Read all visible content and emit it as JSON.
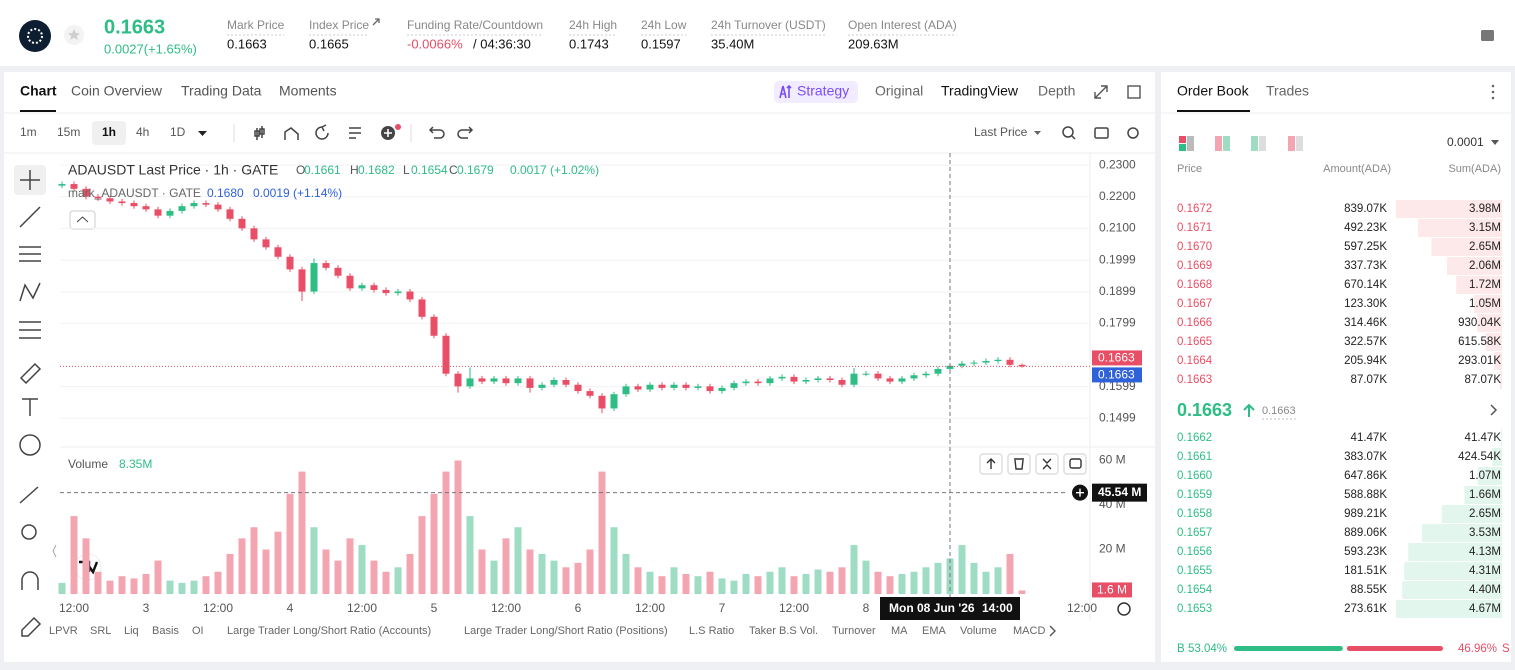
{
  "header": {
    "price": "0.1663",
    "change": "0.0027(+1.65%)",
    "stats": [
      {
        "label": "Mark Price",
        "value": "0.1663"
      },
      {
        "label": "Index Price",
        "value": "0.1665"
      },
      {
        "label": "Funding Rate/Countdown",
        "value": "-0.0066%",
        "extra": "/ 04:36:30"
      },
      {
        "label": "24h High",
        "value": "0.1743"
      },
      {
        "label": "24h Low",
        "value": "0.1597"
      },
      {
        "label": "24h Turnover (USDT)",
        "value": "35.40M"
      },
      {
        "label": "Open Interest (ADA)",
        "value": "209.63M"
      }
    ]
  },
  "chart_panel": {
    "tabs": [
      "Chart",
      "Coin Overview",
      "Trading Data",
      "Moments"
    ],
    "view_tabs": [
      "Strategy",
      "Original",
      "TradingView",
      "Depth"
    ],
    "intervals": [
      "1m",
      "15m",
      "1h",
      "4h",
      "1D"
    ],
    "price_source": "Last Price",
    "indicators": [
      "LPVR",
      "SRL",
      "Liq",
      "Basis",
      "OI",
      "Large Trader Long/Short Ratio (Accounts)",
      "Large Trader Long/Short Ratio (Positions)",
      "L.S Ratio",
      "Taker B.S Vol.",
      "Turnover",
      "MA",
      "EMA",
      "Volume",
      "MACD"
    ]
  },
  "chart_data": {
    "type": "candlestick",
    "title": "ADAUSDT Last Price · 1h · GATE",
    "legend_ohlc": [
      {
        "key": "O",
        "value": "0.1661"
      },
      {
        "key": "H",
        "value": "0.1682"
      },
      {
        "key": "L",
        "value": "0.1654"
      },
      {
        "key": "C",
        "value": "0.1679"
      }
    ],
    "legend_change": "0.0017 (+1.02%)",
    "mark_label": "mark_ADAUSDT · GATE",
    "mark_value": "0.1680",
    "mark_change": "0.0019 (+1.14%)",
    "up_color": "#2ebd85",
    "down_color": "#e84e65",
    "x_labels": [
      "12:00",
      "3",
      "12:00",
      "4",
      "12:00",
      "5",
      "12:00",
      "6",
      "12:00",
      "7",
      "12:00",
      "8",
      null,
      null,
      "12:00"
    ],
    "open": [
      0.2235,
      0.224,
      0.2225,
      0.22,
      0.2195,
      0.2185,
      0.218,
      0.217,
      0.216,
      0.214,
      0.2155,
      0.217,
      0.218,
      0.2175,
      0.216,
      0.213,
      0.21,
      0.2065,
      0.204,
      0.201,
      0.197,
      0.19,
      0.199,
      0.1975,
      0.195,
      0.191,
      0.192,
      0.1905,
      0.1895,
      0.19,
      0.1875,
      0.182,
      0.176,
      0.164,
      0.16,
      0.1625,
      0.1615,
      0.1625,
      0.161,
      0.1625,
      0.1595,
      0.1605,
      0.162,
      0.1605,
      0.1585,
      0.157,
      0.153,
      0.1575,
      0.16,
      0.159,
      0.1605,
      0.1595,
      0.1605,
      0.1595,
      0.16,
      0.1585,
      0.1595,
      0.161,
      0.1615,
      0.161,
      0.1625,
      0.163,
      0.1615,
      0.162,
      0.1625,
      0.162,
      0.1605,
      0.164,
      0.164,
      0.1625,
      0.1615,
      0.1625,
      0.1635,
      0.164,
      0.1655,
      0.1665,
      0.1672,
      0.1675,
      0.168,
      0.1684,
      0.1668
    ],
    "high": [
      0.2248,
      0.2248,
      0.2233,
      0.2208,
      0.2203,
      0.2193,
      0.2188,
      0.2178,
      0.2168,
      0.2163,
      0.2178,
      0.2188,
      0.2188,
      0.2183,
      0.2168,
      0.2138,
      0.2108,
      0.2073,
      0.2048,
      0.2018,
      0.1978,
      0.2005,
      0.1998,
      0.1983,
      0.1958,
      0.1928,
      0.1928,
      0.1913,
      0.1908,
      0.1908,
      0.1883,
      0.1828,
      0.1768,
      0.1648,
      0.166,
      0.1633,
      0.1633,
      0.1633,
      0.1633,
      0.1633,
      0.1613,
      0.1628,
      0.1628,
      0.1613,
      0.1593,
      0.1578,
      0.1583,
      0.1608,
      0.1608,
      0.1613,
      0.1613,
      0.1613,
      0.1613,
      0.1608,
      0.1608,
      0.1603,
      0.1618,
      0.1623,
      0.1623,
      0.1633,
      0.1638,
      0.1638,
      0.1628,
      0.1633,
      0.1633,
      0.1628,
      0.1658,
      0.1648,
      0.1648,
      0.1633,
      0.1633,
      0.1643,
      0.1648,
      0.1663,
      0.1673,
      0.168,
      0.1683,
      0.1688,
      0.1692,
      0.1692,
      0.1672
    ],
    "low": [
      0.2227,
      0.2217,
      0.2192,
      0.2187,
      0.2177,
      0.2172,
      0.2162,
      0.2152,
      0.2132,
      0.2132,
      0.2147,
      0.2162,
      0.2167,
      0.2152,
      0.2122,
      0.2092,
      0.2057,
      0.2032,
      0.2002,
      0.1962,
      0.187,
      0.1892,
      0.1967,
      0.1942,
      0.1902,
      0.1902,
      0.1897,
      0.1887,
      0.1887,
      0.1867,
      0.1812,
      0.1752,
      0.1632,
      0.158,
      0.1592,
      0.1607,
      0.1607,
      0.1602,
      0.1602,
      0.158,
      0.1587,
      0.1597,
      0.1597,
      0.1577,
      0.1562,
      0.1515,
      0.1522,
      0.1567,
      0.1582,
      0.1582,
      0.1587,
      0.1587,
      0.1587,
      0.1587,
      0.1577,
      0.1577,
      0.1587,
      0.1602,
      0.1602,
      0.1602,
      0.1617,
      0.1607,
      0.1607,
      0.1612,
      0.1612,
      0.1597,
      0.1597,
      0.1632,
      0.1617,
      0.1607,
      0.1607,
      0.1617,
      0.1627,
      0.1632,
      0.1647,
      0.1657,
      0.1664,
      0.1667,
      0.1672,
      0.166,
      0.1659
    ],
    "close": [
      0.224,
      0.2225,
      0.22,
      0.2195,
      0.2185,
      0.218,
      0.217,
      0.216,
      0.214,
      0.2155,
      0.217,
      0.218,
      0.2175,
      0.216,
      0.213,
      0.21,
      0.2065,
      0.204,
      0.201,
      0.197,
      0.19,
      0.199,
      0.1975,
      0.195,
      0.191,
      0.192,
      0.1905,
      0.1895,
      0.19,
      0.1875,
      0.182,
      0.176,
      0.164,
      0.16,
      0.1625,
      0.1615,
      0.1625,
      0.161,
      0.1625,
      0.1595,
      0.1605,
      0.162,
      0.1605,
      0.1585,
      0.157,
      0.153,
      0.1575,
      0.16,
      0.159,
      0.1605,
      0.1595,
      0.1605,
      0.1595,
      0.16,
      0.1585,
      0.1595,
      0.161,
      0.1615,
      0.161,
      0.1625,
      0.163,
      0.1615,
      0.162,
      0.1625,
      0.162,
      0.1605,
      0.164,
      0.164,
      0.1625,
      0.1615,
      0.1625,
      0.1635,
      0.164,
      0.1655,
      0.1665,
      0.1672,
      0.1675,
      0.168,
      0.1684,
      0.1668,
      0.1663
    ],
    "ylim": [
      0.1408,
      0.2332
    ],
    "yticks": [
      {
        "value": 0.23,
        "label": "0.2300"
      },
      {
        "value": 0.22,
        "label": "0.2200"
      },
      {
        "value": 0.21,
        "label": "0.2100"
      },
      0.1999,
      0.1899,
      0.1799,
      0.1599,
      0.1499
    ],
    "grid": true,
    "price_markers": [
      {
        "value": 0.1663,
        "label": "0.1663",
        "color": "#e84e65"
      },
      {
        "value": 0.1663,
        "label": "0.1663",
        "color": "#2f62d8"
      }
    ],
    "crosshair_time": [
      "Mon 08 Jun '26",
      "14:00"
    ],
    "volume": {
      "title": "Volume",
      "current": "8.35M",
      "up_color": "#9fdcc4",
      "down_color": "#f4a5b2",
      "values": [
        5,
        35,
        25,
        10,
        6,
        8,
        7,
        9,
        15,
        6,
        5,
        6,
        8,
        10,
        18,
        25,
        30,
        20,
        28,
        45,
        55,
        30,
        20,
        15,
        25,
        22,
        15,
        10,
        12,
        18,
        35,
        45,
        55,
        60,
        35,
        20,
        15,
        25,
        30,
        20,
        18,
        15,
        12,
        14,
        20,
        55,
        30,
        18,
        12,
        10,
        8,
        12,
        9,
        8,
        10,
        7,
        6,
        9,
        8,
        10,
        12,
        8,
        9,
        11,
        10,
        12,
        22,
        15,
        10,
        8,
        9,
        10,
        12,
        14,
        16,
        22,
        14,
        10,
        12,
        18,
        1.6
      ],
      "ylim": [
        0,
        64.7
      ],
      "yticks": [
        {
          "value": 60,
          "label": "60 M"
        },
        {
          "value": 40,
          "label": "40 M"
        },
        {
          "value": 20,
          "label": "20 M"
        }
      ],
      "crosshair_marker": {
        "value": 45.54,
        "label": "45.54 M"
      },
      "last_marker": {
        "value": 1.6,
        "label": "1.6 M"
      }
    }
  },
  "order_book": {
    "tabs": [
      "Order Book",
      "Trades"
    ],
    "precision": "0.0001",
    "columns": [
      "Price",
      "Amount(ADA)",
      "Sum(ADA)"
    ],
    "asks": [
      {
        "price": "0.1672",
        "amount": "839.07K",
        "sum": {
          "value": 3980000,
          "label": "3.98M"
        }
      },
      {
        "price": "0.1671",
        "amount": "492.23K",
        "sum": {
          "value": 3150000,
          "label": "3.15M"
        }
      },
      {
        "price": "0.1670",
        "amount": "597.25K",
        "sum": {
          "value": 2650000,
          "label": "2.65M"
        }
      },
      {
        "price": "0.1669",
        "amount": "337.73K",
        "sum": {
          "value": 2060000,
          "label": "2.06M"
        }
      },
      {
        "price": "0.1668",
        "amount": "670.14K",
        "sum": {
          "value": 1720000,
          "label": "1.72M"
        }
      },
      {
        "price": "0.1667",
        "amount": "123.30K",
        "sum": {
          "value": 1050000,
          "label": "1.05M"
        }
      },
      {
        "price": "0.1666",
        "amount": "314.46K",
        "sum": {
          "value": 930040,
          "label": "930.04K"
        }
      },
      {
        "price": "0.1665",
        "amount": "322.57K",
        "sum": {
          "value": 615580,
          "label": "615.58K"
        }
      },
      {
        "price": "0.1664",
        "amount": "205.94K",
        "sum": {
          "value": 293010,
          "label": "293.01K"
        }
      },
      {
        "price": "0.1663",
        "amount": "87.07K",
        "sum": {
          "value": 87070,
          "label": "87.07K"
        }
      }
    ],
    "last_price": "0.1663",
    "mark_price": "0.1663",
    "bids": [
      {
        "price": "0.1662",
        "amount": "41.47K",
        "sum": {
          "value": 41470,
          "label": "41.47K"
        }
      },
      {
        "price": "0.1661",
        "amount": "383.07K",
        "sum": {
          "value": 424540,
          "label": "424.54K"
        }
      },
      {
        "price": "0.1660",
        "amount": "647.86K",
        "sum": {
          "value": 1070000,
          "label": "1.07M"
        }
      },
      {
        "price": "0.1659",
        "amount": "588.88K",
        "sum": {
          "value": 1660000,
          "label": "1.66M"
        }
      },
      {
        "price": "0.1658",
        "amount": "989.21K",
        "sum": {
          "value": 2650000,
          "label": "2.65M"
        }
      },
      {
        "price": "0.1657",
        "amount": "889.06K",
        "sum": {
          "value": 3530000,
          "label": "3.53M"
        }
      },
      {
        "price": "0.1656",
        "amount": "593.23K",
        "sum": {
          "value": 4130000,
          "label": "4.13M"
        }
      },
      {
        "price": "0.1655",
        "amount": "181.51K",
        "sum": {
          "value": 4310000,
          "label": "4.31M"
        }
      },
      {
        "price": "0.1654",
        "amount": "88.55K",
        "sum": {
          "value": 4400000,
          "label": "4.40M"
        }
      },
      {
        "price": "0.1653",
        "amount": "273.61K",
        "sum": {
          "value": 4670000,
          "label": "4.67M"
        }
      }
    ],
    "buy_key": "B",
    "sell_key": "S",
    "buy_ratio": {
      "value": 53.04,
      "label": "53.04%"
    },
    "sell_ratio": {
      "value": 46.96,
      "label": "46.96%"
    }
  }
}
